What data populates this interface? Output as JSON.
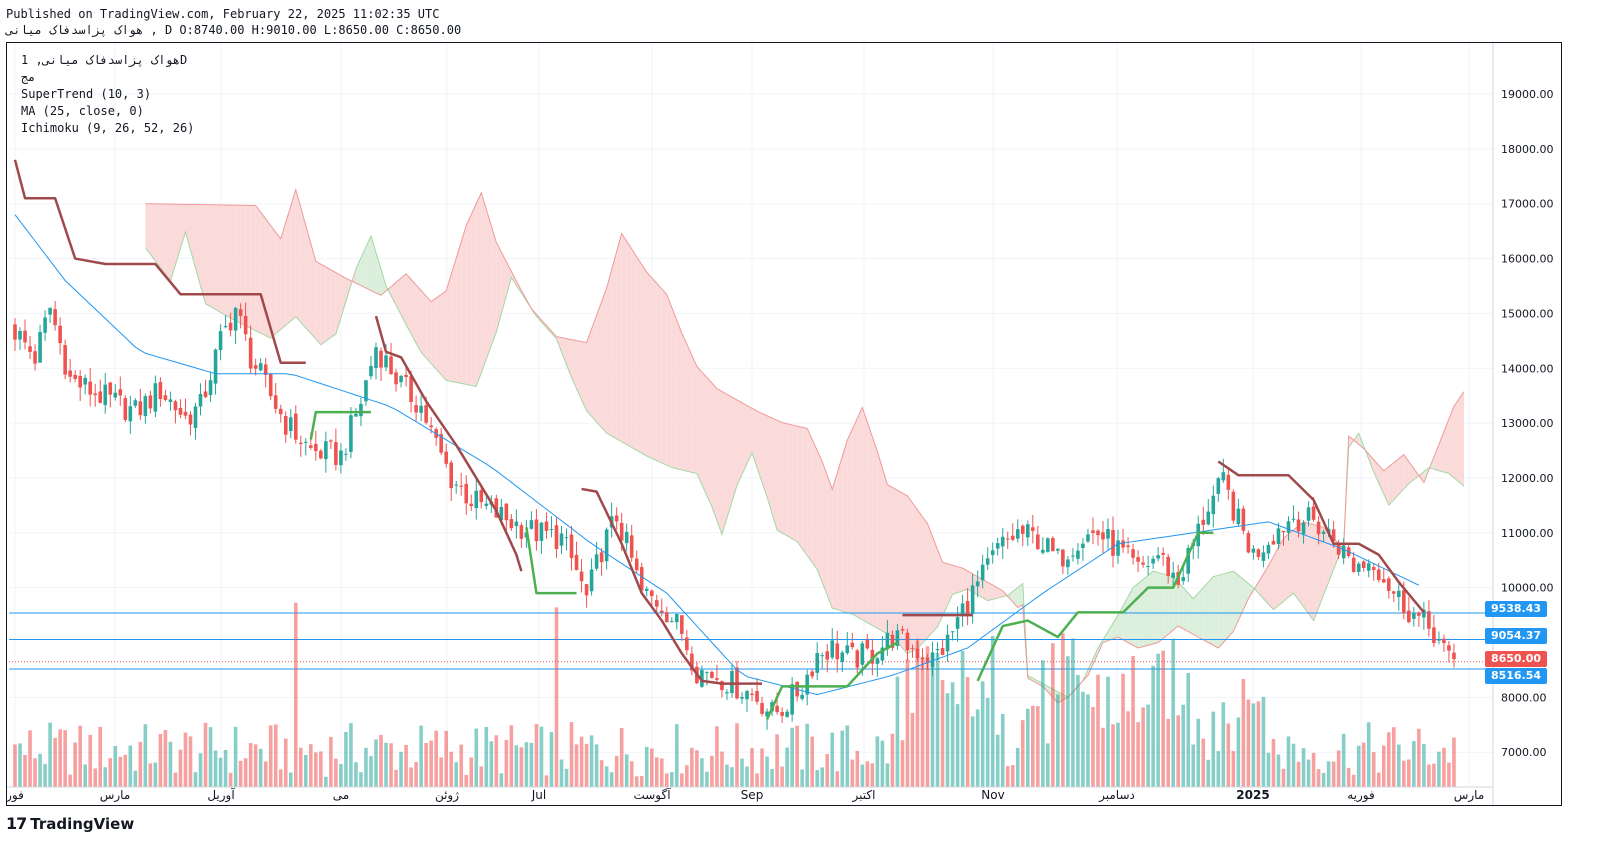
{
  "header": {
    "published": "Published on TradingView.com, February 22, 2025 11:02:35 UTC",
    "symbol_line": "هواک پزاسدفاک میانی , D",
    "ohlc": "O:8740.00 H:9010.00 L:8650.00 C:8650.00"
  },
  "legend": {
    "title": "هواک پزاسدفاک میانی, 1D",
    "subtitle": "مج",
    "indicators": [
      "SuperTrend (10, 3)",
      "MA (25, close, 0)",
      "Ichimoku (9, 26, 52, 26)"
    ]
  },
  "price_labels": [
    {
      "value": "9538.43",
      "color": "#2196f3"
    },
    {
      "value": "9054.37",
      "color": "#2196f3"
    },
    {
      "value": "8650.00",
      "color": "#ef5350"
    },
    {
      "value": "8516.54",
      "color": "#2196f3"
    }
  ],
  "brand": "TradingView",
  "colors": {
    "up": "#26a69a",
    "down": "#ef5350",
    "ma": "#2196f3",
    "supertrend_down": "#a0494b",
    "supertrend_up": "#4caf50",
    "cloud_bear": "#fbdada",
    "cloud_bull": "#dcefdc",
    "hline": "#2196f3"
  },
  "chart_data": {
    "type": "candlestick",
    "title": "هواک پزاسدفاک میانی, 1D",
    "y_axis": {
      "ticks": [
        19000,
        18000,
        17000,
        16000,
        15000,
        14000,
        13000,
        12000,
        11000,
        10000,
        8000,
        7000
      ],
      "ylim": [
        6500,
        19800
      ]
    },
    "x_axis": {
      "labels": [
        "فور",
        "مارس",
        "آوریل",
        "می",
        "ژوئن",
        "Jul",
        "آگوست",
        "Sep",
        "اکتبر",
        "Nov",
        "دسامبر",
        "2025",
        "فوریه",
        "مارس"
      ]
    },
    "horizontal_levels": [
      9538.43,
      9054.37,
      8516.54
    ],
    "last_close": 8650.0,
    "close_path": [
      [
        0,
        14800
      ],
      [
        5,
        14200
      ],
      [
        8,
        15100
      ],
      [
        12,
        13800
      ],
      [
        18,
        13500
      ],
      [
        25,
        13200
      ],
      [
        30,
        13600
      ],
      [
        35,
        13100
      ],
      [
        38,
        13300
      ],
      [
        42,
        14500
      ],
      [
        45,
        15100
      ],
      [
        48,
        14200
      ],
      [
        52,
        13500
      ],
      [
        55,
        13000
      ],
      [
        60,
        12500
      ],
      [
        66,
        12400
      ],
      [
        70,
        13400
      ],
      [
        73,
        14400
      ],
      [
        78,
        13700
      ],
      [
        82,
        13300
      ],
      [
        85,
        12600
      ],
      [
        88,
        12000
      ],
      [
        92,
        11600
      ],
      [
        96,
        11400
      ],
      [
        100,
        11200
      ],
      [
        105,
        11000
      ],
      [
        110,
        10900
      ],
      [
        113,
        10300
      ],
      [
        115,
        9800
      ],
      [
        118,
        10700
      ],
      [
        121,
        11300
      ],
      [
        124,
        10500
      ],
      [
        126,
        9900
      ],
      [
        130,
        9700
      ],
      [
        134,
        9200
      ],
      [
        137,
        8500
      ],
      [
        141,
        8400
      ],
      [
        145,
        8200
      ],
      [
        149,
        8000
      ],
      [
        152,
        7700
      ],
      [
        154,
        7800
      ],
      [
        158,
        8200
      ],
      [
        161,
        8800
      ],
      [
        164,
        8900
      ],
      [
        168,
        8700
      ],
      [
        172,
        8800
      ],
      [
        176,
        9100
      ],
      [
        180,
        8900
      ],
      [
        184,
        8700
      ],
      [
        187,
        9000
      ],
      [
        190,
        9600
      ],
      [
        194,
        10200
      ],
      [
        197,
        10700
      ],
      [
        201,
        11000
      ],
      [
        205,
        10900
      ],
      [
        209,
        10500
      ],
      [
        213,
        10900
      ],
      [
        217,
        11000
      ],
      [
        221,
        10700
      ],
      [
        225,
        10300
      ],
      [
        229,
        10600
      ],
      [
        233,
        10100
      ],
      [
        236,
        10800
      ],
      [
        239,
        11500
      ],
      [
        242,
        11900
      ],
      [
        245,
        11200
      ],
      [
        248,
        10600
      ],
      [
        252,
        11000
      ],
      [
        256,
        11300
      ],
      [
        260,
        11200
      ],
      [
        264,
        10900
      ],
      [
        268,
        10400
      ],
      [
        272,
        10500
      ],
      [
        276,
        9900
      ],
      [
        280,
        9500
      ],
      [
        284,
        9200
      ],
      [
        287,
        8650
      ]
    ],
    "moving_average": [
      [
        0,
        16800
      ],
      [
        10,
        15600
      ],
      [
        25,
        14300
      ],
      [
        40,
        13900
      ],
      [
        55,
        13900
      ],
      [
        75,
        13300
      ],
      [
        95,
        12200
      ],
      [
        115,
        10800
      ],
      [
        130,
        9900
      ],
      [
        145,
        8400
      ],
      [
        160,
        8050
      ],
      [
        175,
        8400
      ],
      [
        190,
        8900
      ],
      [
        205,
        9900
      ],
      [
        220,
        10800
      ],
      [
        235,
        11000
      ],
      [
        250,
        11200
      ],
      [
        265,
        10700
      ],
      [
        281,
        10000
      ]
    ],
    "supertrend": [
      {
        "trend": "down",
        "points": [
          [
            0,
            17800
          ],
          [
            2,
            17100
          ],
          [
            8,
            17100
          ],
          [
            12,
            16000
          ],
          [
            18,
            15900
          ],
          [
            28,
            15900
          ],
          [
            33,
            15350
          ],
          [
            49,
            15350
          ],
          [
            53,
            14100
          ],
          [
            58,
            14100
          ]
        ]
      },
      {
        "trend": "up",
        "points": [
          [
            59,
            12700
          ],
          [
            60,
            13200
          ],
          [
            71,
            13200
          ]
        ]
      },
      {
        "trend": "down",
        "points": [
          [
            72,
            14950
          ],
          [
            74,
            14300
          ],
          [
            77,
            14200
          ],
          [
            82,
            13400
          ],
          [
            88,
            12600
          ],
          [
            92,
            12000
          ],
          [
            96,
            11400
          ],
          [
            100,
            10600
          ],
          [
            101,
            10300
          ]
        ]
      },
      {
        "trend": "up",
        "points": [
          [
            102,
            11100
          ],
          [
            104,
            9900
          ],
          [
            112,
            9900
          ]
        ]
      },
      {
        "trend": "down",
        "points": [
          [
            113,
            11800
          ],
          [
            116,
            11750
          ],
          [
            121,
            10800
          ],
          [
            125,
            9900
          ],
          [
            129,
            9400
          ],
          [
            133,
            8800
          ],
          [
            137,
            8300
          ],
          [
            141,
            8250
          ],
          [
            149,
            8250
          ]
        ]
      },
      {
        "trend": "up",
        "points": [
          [
            150,
            7600
          ],
          [
            153,
            8200
          ],
          [
            166,
            8200
          ],
          [
            172,
            8800
          ],
          [
            176,
            9000
          ]
        ]
      },
      {
        "trend": "down",
        "points": [
          [
            177,
            9500
          ],
          [
            191,
            9500
          ]
        ]
      },
      {
        "trend": "up",
        "points": [
          [
            192,
            8300
          ],
          [
            197,
            9300
          ],
          [
            202,
            9400
          ],
          [
            208,
            9100
          ],
          [
            212,
            9550
          ],
          [
            221,
            9550
          ],
          [
            226,
            10000
          ],
          [
            231,
            10000
          ],
          [
            236,
            11000
          ],
          [
            239,
            11000
          ]
        ]
      },
      {
        "trend": "down",
        "points": [
          [
            240,
            12300
          ],
          [
            244,
            12050
          ],
          [
            254,
            12050
          ],
          [
            259,
            11600
          ],
          [
            263,
            10800
          ],
          [
            268,
            10800
          ],
          [
            272,
            10600
          ],
          [
            276,
            10100
          ],
          [
            281,
            9550
          ]
        ]
      }
    ]
  }
}
